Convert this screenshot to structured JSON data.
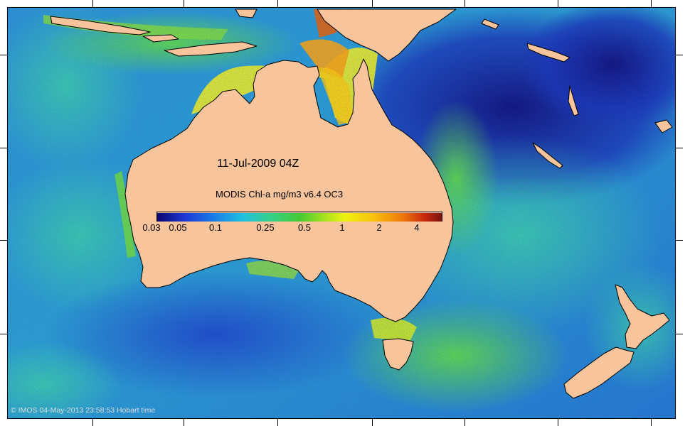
{
  "map": {
    "title": "11-Jul-2009 04Z",
    "product": "MODIS Chl-a mg/m3 v6.4 OC3",
    "credit": "© IMOS 04-May-2013 23:58:53 Hobart time",
    "region": "Australia and surrounding ocean",
    "colors": {
      "land": "#f7c49c",
      "coastline": "#000000"
    }
  },
  "legend": {
    "unit": "mg/m3",
    "ticks": [
      {
        "label": "0.03",
        "value": 0.03
      },
      {
        "label": "0.05",
        "value": 0.05
      },
      {
        "label": "0.1",
        "value": 0.1
      },
      {
        "label": "0.25",
        "value": 0.25
      },
      {
        "label": "0.5",
        "value": 0.5
      },
      {
        "label": "1",
        "value": 1
      },
      {
        "label": "2",
        "value": 2
      },
      {
        "label": "4",
        "value": 4
      }
    ],
    "colormap": [
      "#08066e",
      "#1d3ad6",
      "#1a7de6",
      "#20c0e0",
      "#35d08a",
      "#44c832",
      "#9de021",
      "#eef211",
      "#f7c10d",
      "#ef7a0c",
      "#c8290c",
      "#7a0f0f"
    ]
  }
}
